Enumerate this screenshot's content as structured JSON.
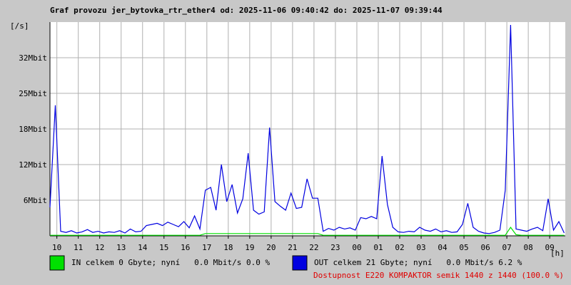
{
  "chart_data": {
    "type": "line",
    "title": "Graf provozu jer_bytovka_rtr_ether4 od: 2025-11-06 09:40:42 do: 2025-11-07 09:39:44",
    "y_label": "[/s]",
    "x_label": "[h]",
    "x": [
      0,
      0.25,
      0.5,
      0.75,
      1,
      1.25,
      1.5,
      1.75,
      2,
      2.25,
      2.5,
      2.75,
      3,
      3.25,
      3.5,
      3.75,
      4,
      4.25,
      4.5,
      4.75,
      5,
      5.25,
      5.5,
      5.75,
      6,
      6.25,
      6.5,
      6.75,
      7,
      7.25,
      7.5,
      7.75,
      8,
      8.25,
      8.5,
      8.75,
      9,
      9.25,
      9.5,
      9.75,
      10,
      10.25,
      10.5,
      10.75,
      11,
      11.25,
      11.5,
      11.75,
      12,
      12.25,
      12.5,
      12.75,
      13,
      13.25,
      13.5,
      13.75,
      14,
      14.25,
      14.5,
      14.75,
      15,
      15.25,
      15.5,
      15.75,
      16,
      16.25,
      16.5,
      16.75,
      17,
      17.25,
      17.5,
      17.75,
      18,
      18.25,
      18.5,
      18.75,
      19,
      19.25,
      19.5,
      19.75,
      20,
      20.25,
      20.5,
      20.75,
      21,
      21.25,
      21.5,
      21.75,
      22,
      22.25,
      22.5,
      22.75,
      23,
      23.25,
      23.5,
      23.75,
      24
    ],
    "series": [
      {
        "name": "IN",
        "summary": "celkem 0 Gbyte; nyní   0.0 Mbit/s 0.0 %",
        "color": "#00e000",
        "values": [
          0.1,
          0.1,
          0.1,
          0.1,
          0.1,
          0.1,
          0.1,
          0.1,
          0.1,
          0.1,
          0.1,
          0.1,
          0.1,
          0.1,
          0.1,
          0.1,
          0.1,
          0.1,
          0.1,
          0.1,
          0.1,
          0.1,
          0.1,
          0.1,
          0.1,
          0.1,
          0.1,
          0.1,
          0.1,
          0.4,
          0.4,
          0.4,
          0.4,
          0.4,
          0.4,
          0.4,
          0.4,
          0.4,
          0.4,
          0.4,
          0.4,
          0.4,
          0.4,
          0.4,
          0.4,
          0.4,
          0.4,
          0.4,
          0.4,
          0.4,
          0.4,
          0.1,
          0.1,
          0.1,
          0.1,
          0.1,
          0.1,
          0.1,
          0.1,
          0.1,
          0.1,
          0.1,
          0.1,
          0.1,
          0.1,
          0.1,
          0.1,
          0.1,
          0.1,
          0.1,
          0.1,
          0.1,
          0.1,
          0.1,
          0.1,
          0.1,
          0.1,
          0.1,
          0.1,
          0.1,
          0.1,
          0.1,
          0.1,
          0.1,
          0.1,
          0.1,
          1.5,
          0.2,
          0.1,
          0.1,
          0.1,
          0.1,
          0.1,
          0.1,
          0.1,
          0.1,
          0.1
        ]
      },
      {
        "name": "OUT",
        "summary": "celkem 21 Gbyte; nyní   0.0 Mbit/s 6.2 %",
        "color": "#0000e0",
        "values": [
          5,
          22.9,
          0.8,
          0.6,
          0.9,
          0.5,
          0.7,
          1.1,
          0.6,
          0.8,
          0.5,
          0.7,
          0.6,
          0.9,
          0.5,
          1.2,
          0.7,
          0.8,
          1.8,
          2.0,
          2.2,
          1.8,
          2.4,
          2.0,
          1.6,
          2.5,
          1.4,
          3.5,
          1.2,
          8.0,
          8.5,
          4.5,
          12.5,
          6.0,
          9.0,
          4.0,
          6.5,
          14.5,
          4.5,
          3.8,
          4.2,
          19,
          6,
          5.2,
          4.5,
          7.5,
          4.8,
          5.0,
          10.0,
          6.6,
          6.6,
          0.8,
          1.3,
          1.0,
          1.5,
          1.2,
          1.4,
          1.0,
          3.2,
          3.0,
          3.4,
          3.0,
          14.0,
          5.5,
          1.5,
          0.7,
          0.6,
          0.8,
          0.7,
          1.5,
          1.0,
          0.8,
          1.2,
          0.7,
          0.9,
          0.6,
          0.7,
          2.0,
          5.7,
          1.5,
          0.8,
          0.5,
          0.4,
          0.6,
          1.0,
          8.0,
          37.0,
          1.2,
          1.0,
          0.8,
          1.2,
          1.5,
          0.9,
          6.5,
          1.0,
          2.5,
          0.5
        ]
      }
    ],
    "availability": "Dostupnost E220 KOMPAKTOR semik 1440 z 1440 (100.0 %)",
    "availability_color": "#e00000",
    "xlim": [
      0,
      24.05
    ],
    "xticks": [
      {
        "value": 0.322,
        "label": "10"
      },
      {
        "value": 1.322,
        "label": "11"
      },
      {
        "value": 2.322,
        "label": "12"
      },
      {
        "value": 3.322,
        "label": "13"
      },
      {
        "value": 4.322,
        "label": "14"
      },
      {
        "value": 5.322,
        "label": "15"
      },
      {
        "value": 6.322,
        "label": "16"
      },
      {
        "value": 7.322,
        "label": "17"
      },
      {
        "value": 8.322,
        "label": "18"
      },
      {
        "value": 9.322,
        "label": "19"
      },
      {
        "value": 10.322,
        "label": "20"
      },
      {
        "value": 11.322,
        "label": "21"
      },
      {
        "value": 12.322,
        "label": "22"
      },
      {
        "value": 13.322,
        "label": "23"
      },
      {
        "value": 14.322,
        "label": "00"
      },
      {
        "value": 15.322,
        "label": "01"
      },
      {
        "value": 16.322,
        "label": "02"
      },
      {
        "value": 17.322,
        "label": "03"
      },
      {
        "value": 18.322,
        "label": "04"
      },
      {
        "value": 19.322,
        "label": "05"
      },
      {
        "value": 20.322,
        "label": "06"
      },
      {
        "value": 21.322,
        "label": "07"
      },
      {
        "value": 22.322,
        "label": "08"
      },
      {
        "value": 23.322,
        "label": "09"
      }
    ],
    "ylim": [
      0,
      37.5
    ],
    "yticks": [
      {
        "value": 6.25,
        "label": "6Mbit"
      },
      {
        "value": 12.5,
        "label": "12Mbit"
      },
      {
        "value": 18.75,
        "label": "18Mbit"
      },
      {
        "value": 25,
        "label": "25Mbit"
      },
      {
        "value": 31.25,
        "label": "32Mbit"
      }
    ],
    "grid": true
  }
}
